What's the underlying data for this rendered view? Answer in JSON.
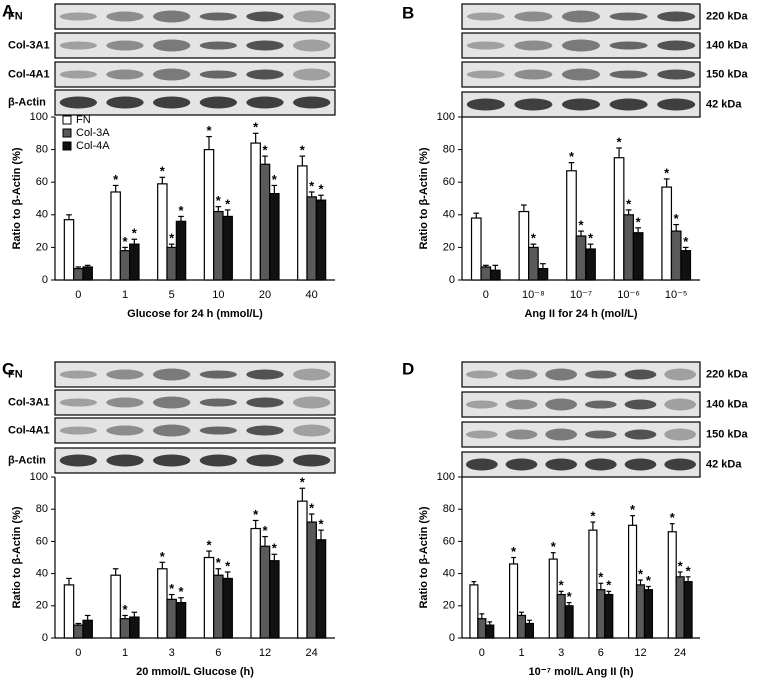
{
  "chart_data": [
    {
      "type": "bar",
      "panel": "A",
      "blot_labels": [
        "FN",
        "Col-3A1",
        "Col-4A1",
        "β-Actin"
      ],
      "xlabel": "Glucose for 24 h (mmol/L)",
      "ylabel": "Ratio to β-Actin (%)",
      "categories": [
        "0",
        "1",
        "5",
        "10",
        "20",
        "40"
      ],
      "series": [
        {
          "name": "FN",
          "color": "#ffffff",
          "values": [
            37,
            54,
            59,
            80,
            84,
            70
          ],
          "errors": [
            3,
            4,
            4,
            8,
            6,
            6
          ],
          "annotations": [
            null,
            "*",
            "*",
            "*",
            "*",
            "*"
          ]
        },
        {
          "name": "Col-3A",
          "color": "#5a5a5a",
          "values": [
            7,
            18,
            20,
            42,
            71,
            51
          ],
          "errors": [
            1,
            2,
            2,
            3,
            5,
            3
          ],
          "annotations": [
            null,
            "*",
            "*",
            "*",
            "*",
            "*"
          ]
        },
        {
          "name": "Col-4A",
          "color": "#111111",
          "values": [
            8,
            22,
            36,
            39,
            53,
            49
          ],
          "errors": [
            1,
            3,
            3,
            4,
            5,
            3
          ],
          "annotations": [
            null,
            "*",
            "*",
            "*",
            "*",
            "*"
          ]
        }
      ],
      "legend": true,
      "ylim": [
        0,
        100
      ],
      "yticks": [
        0,
        20,
        40,
        60,
        80,
        100
      ]
    },
    {
      "type": "bar",
      "panel": "B",
      "blot_labels": [
        "220 kDa",
        "140 kDa",
        "150 kDa",
        "42 kDa"
      ],
      "xlabel": "Ang II for 24 h (mol/L)",
      "ylabel": "Ratio to β-Actin (%)",
      "categories": [
        "0",
        "10⁻⁸",
        "10⁻⁷",
        "10⁻⁶",
        "10⁻⁵"
      ],
      "series": [
        {
          "name": "FN",
          "color": "#ffffff",
          "values": [
            38,
            42,
            67,
            75,
            57
          ],
          "errors": [
            3,
            4,
            5,
            6,
            5
          ],
          "annotations": [
            null,
            null,
            "*",
            "*",
            "*"
          ]
        },
        {
          "name": "Col-3A",
          "color": "#5a5a5a",
          "values": [
            8,
            20,
            27,
            40,
            30
          ],
          "errors": [
            1,
            2,
            3,
            3,
            4
          ],
          "annotations": [
            null,
            "*",
            "*",
            "*",
            "*"
          ]
        },
        {
          "name": "Col-4A",
          "color": "#111111",
          "values": [
            6,
            7,
            19,
            29,
            18
          ],
          "errors": [
            3,
            3,
            3,
            3,
            2
          ],
          "annotations": [
            null,
            null,
            "*",
            "*",
            "*"
          ]
        }
      ],
      "legend": false,
      "ylim": [
        0,
        100
      ],
      "yticks": [
        0,
        20,
        40,
        60,
        80,
        100
      ]
    },
    {
      "type": "bar",
      "panel": "C",
      "blot_labels": [
        "FN",
        "Col-3A1",
        "Col-4A1",
        "β-Actin"
      ],
      "xlabel": "20 mmol/L Glucose (h)",
      "ylabel": "Ratio to β-Actin (%)",
      "categories": [
        "0",
        "1",
        "3",
        "6",
        "12",
        "24"
      ],
      "series": [
        {
          "name": "FN",
          "color": "#ffffff",
          "values": [
            33,
            39,
            43,
            50,
            68,
            85
          ],
          "errors": [
            4,
            4,
            4,
            4,
            5,
            8
          ],
          "annotations": [
            null,
            null,
            "*",
            "*",
            "*",
            "*"
          ]
        },
        {
          "name": "Col-3A",
          "color": "#5a5a5a",
          "values": [
            8,
            12,
            24,
            39,
            57,
            72
          ],
          "errors": [
            1,
            2,
            3,
            4,
            6,
            5
          ],
          "annotations": [
            null,
            "*",
            "*",
            "*",
            "*",
            "*"
          ]
        },
        {
          "name": "Col-4A",
          "color": "#111111",
          "values": [
            11,
            13,
            22,
            37,
            48,
            61
          ],
          "errors": [
            3,
            3,
            3,
            4,
            4,
            6
          ],
          "annotations": [
            null,
            null,
            "*",
            "*",
            "*",
            "*"
          ]
        }
      ],
      "legend": false,
      "ylim": [
        0,
        100
      ],
      "yticks": [
        0,
        20,
        40,
        60,
        80,
        100
      ]
    },
    {
      "type": "bar",
      "panel": "D",
      "blot_labels": [
        "220 kDa",
        "140 kDa",
        "150 kDa",
        "42 kDa"
      ],
      "xlabel": "10⁻⁷ mol/L Ang II (h)",
      "ylabel": "Ratio to β-Actin (%)",
      "categories": [
        "0",
        "1",
        "3",
        "6",
        "12",
        "24"
      ],
      "series": [
        {
          "name": "FN",
          "color": "#ffffff",
          "values": [
            33,
            46,
            49,
            67,
            70,
            66
          ],
          "errors": [
            2,
            4,
            4,
            5,
            6,
            5
          ],
          "annotations": [
            null,
            "*",
            "*",
            "*",
            "*",
            "*"
          ]
        },
        {
          "name": "Col-3A",
          "color": "#5a5a5a",
          "values": [
            12,
            14,
            27,
            30,
            33,
            38
          ],
          "errors": [
            3,
            2,
            2,
            4,
            3,
            3
          ],
          "annotations": [
            null,
            null,
            "*",
            "*",
            "*",
            "*"
          ]
        },
        {
          "name": "Col-4A",
          "color": "#111111",
          "values": [
            8,
            9,
            20,
            27,
            30,
            35
          ],
          "errors": [
            2,
            2,
            2,
            2,
            2,
            3
          ],
          "annotations": [
            null,
            null,
            "*",
            "*",
            "*",
            "*"
          ]
        }
      ],
      "legend": false,
      "ylim": [
        0,
        100
      ],
      "yticks": [
        0,
        20,
        40,
        60,
        80,
        100
      ]
    }
  ]
}
